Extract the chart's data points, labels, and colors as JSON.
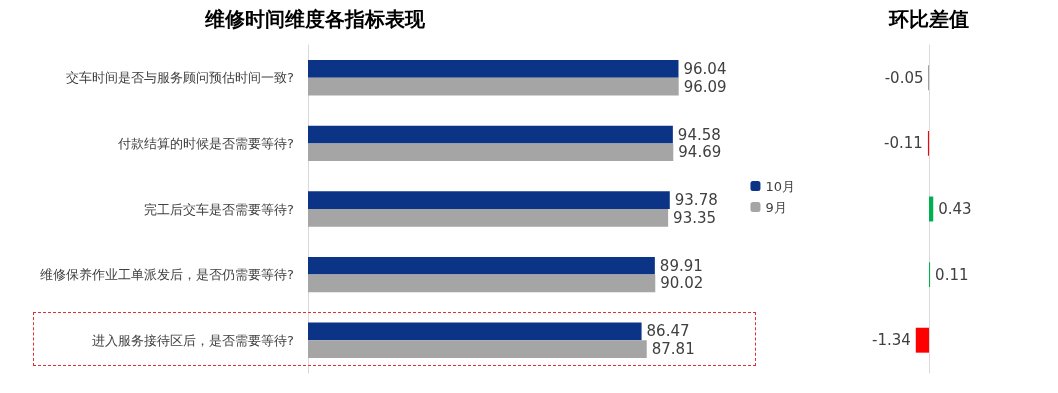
{
  "chart_data": [
    {
      "type": "bar",
      "orientation": "horizontal",
      "title": "维修时间维度各指标表现",
      "categories": [
        "交车时间是否与服务顾问预估时间一致?",
        "付款结算的时候是否需要等待?",
        "完工后交车是否需要等待?",
        "维修保养作业工单派发后，是否仍需要等待?",
        "进入服务接待区后，是否需要等待?"
      ],
      "series": [
        {
          "name": "10月",
          "color": "#0b3486",
          "values": [
            96.04,
            94.58,
            93.78,
            89.91,
            86.47
          ]
        },
        {
          "name": "9月",
          "color": "#a5a5a5",
          "values": [
            96.09,
            94.69,
            93.35,
            90.02,
            87.81
          ]
        }
      ],
      "data_labels": true,
      "legend": "right",
      "tick_labels": "y"
    },
    {
      "type": "bar",
      "orientation": "horizontal",
      "title": "环比差值",
      "categories": [
        null,
        null,
        null,
        null,
        null
      ],
      "values": [
        -0.05,
        -0.11,
        0.43,
        0.11,
        -1.34
      ],
      "colors": [
        "#404040",
        "#ff0000",
        "#00b050",
        "#00b050",
        "#ff0000"
      ],
      "data_labels": true,
      "tick_labels": false
    }
  ]
}
